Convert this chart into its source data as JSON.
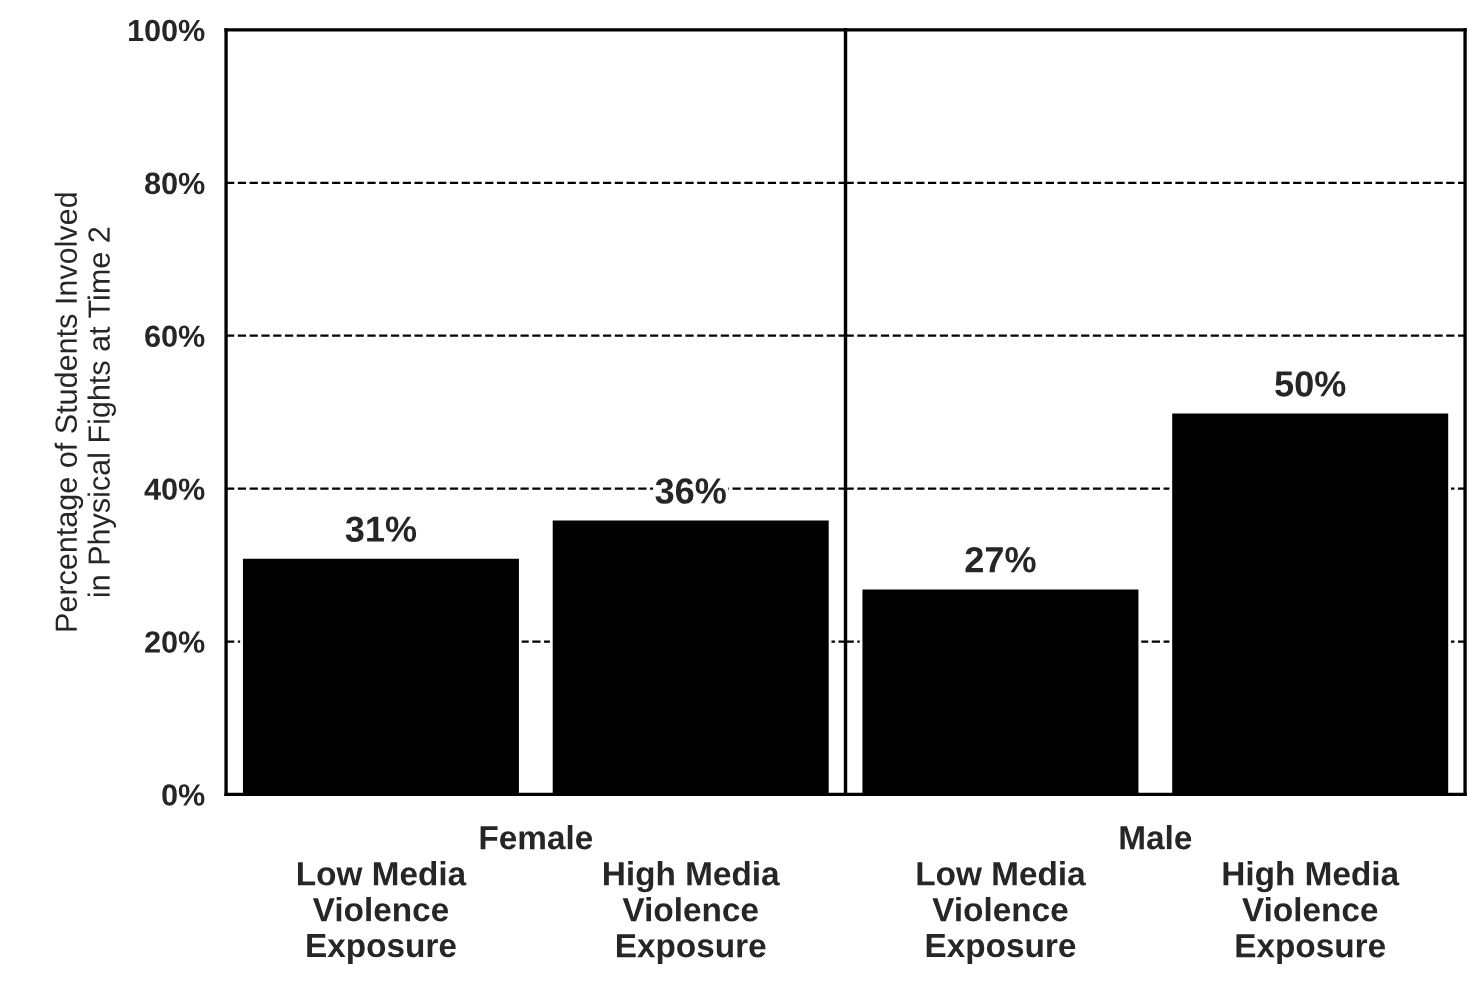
{
  "chart_data": [
    {
      "type": "bar",
      "xlabel": "Female",
      "ylabel": "Percentage of Students Involved\nin Physical Fights at Time 2",
      "categories": [
        "Low Media\nViolence\nExposure",
        "High Media\nViolence\nExposure"
      ],
      "values": [
        31,
        36
      ],
      "value_labels": [
        "31%",
        "36%"
      ],
      "color": "#000000",
      "ylim": [
        0,
        100
      ],
      "yticks": [
        {
          "value": 0,
          "label": "0%"
        },
        {
          "value": 20,
          "label": "20%"
        },
        {
          "value": 40,
          "label": "40%"
        },
        {
          "value": 60,
          "label": "60%"
        },
        {
          "value": 80,
          "label": "80%"
        },
        {
          "value": 100,
          "label": "100%"
        }
      ],
      "grid": "y"
    },
    {
      "type": "bar",
      "xlabel": "Male",
      "categories": [
        "Low Media\nViolence\nExposure",
        "High Media\nViolence\nExposure"
      ],
      "values": [
        27,
        50
      ],
      "value_labels": [
        "27%",
        "50%"
      ],
      "color": "#000000",
      "ylim": [
        0,
        100
      ],
      "yticks": [
        {
          "value": 0,
          "label": null
        },
        {
          "value": 20,
          "label": null
        },
        {
          "value": 40,
          "label": null
        },
        {
          "value": 60,
          "label": null
        },
        {
          "value": 80,
          "label": null
        },
        {
          "value": 100,
          "label": null
        }
      ],
      "tick_labels": "x",
      "grid": "y"
    }
  ]
}
